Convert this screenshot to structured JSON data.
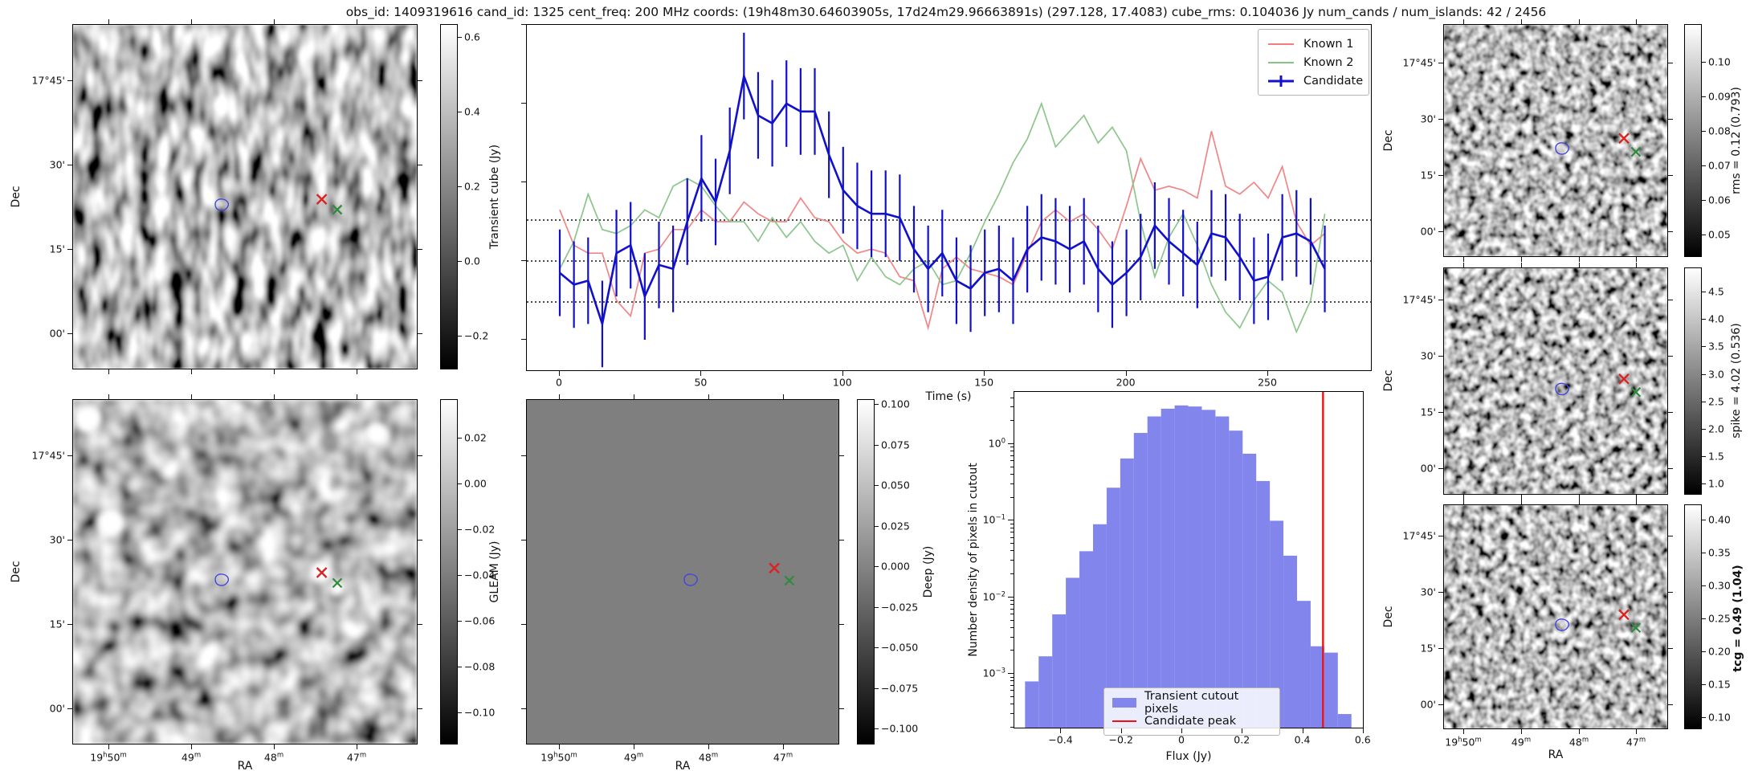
{
  "title": "obs_id: 1409319616 cand_id: 1325 cent_freq: 200 MHz coords: (19h48m30.64603905s, 17d24m29.96663891s) (297.128, 17.4083) cube_rms: 0.104036 Jy num_cands / num_islands: 42 / 2456",
  "stats": {
    "obs_id": "1409319616",
    "cand_id": "1325",
    "cent_freq": "200 MHz",
    "coords": "(19h48m30.64603905s, 17d24m29.96663891s)",
    "coords_deg": "(297.128, 17.4083)",
    "cube_rms": "0.104036 Jy",
    "num_cands": "42",
    "num_islands": "2456"
  },
  "colors": {
    "candidate": "#1111cc",
    "known1": "#f08080",
    "known2": "#86c386",
    "hist_fill": "#8285ec",
    "peak_line": "#ee1111",
    "contour": "#4444dd",
    "marker_red": "#dd2222",
    "marker_green": "#2e8b3c"
  },
  "axes": {
    "dec_label": "Dec",
    "ra_label": "RA",
    "sky_yticks": [
      "17°45'",
      "30'",
      "15'",
      "00'"
    ],
    "sky_xticks": [
      "19h50m",
      "49m",
      "48m",
      "47m"
    ]
  },
  "colorbars": {
    "transient": {
      "label": "Transient cube (Jy)",
      "ticks": [
        "0.6",
        "0.4",
        "0.2",
        "0.0",
        "−0.2"
      ]
    },
    "gleam": {
      "label": "GLEAM (Jy)",
      "ticks": [
        "0.02",
        "0.00",
        "−0.02",
        "−0.04",
        "−0.06",
        "−0.08",
        "−0.10"
      ]
    },
    "deep": {
      "label": "Deep (Jy)",
      "ticks": [
        "0.100",
        "0.075",
        "0.050",
        "0.025",
        "0.000",
        "−0.025",
        "−0.050",
        "−0.075",
        "−0.100"
      ]
    },
    "rms": {
      "label": "rms = 0.12 (0.793)",
      "ticks": [
        "0.10",
        "0.09",
        "0.08",
        "0.07",
        "0.06",
        "0.05"
      ]
    },
    "spike": {
      "label": "spike = 4.02 (0.536)",
      "ticks": [
        "4.5",
        "4.0",
        "3.5",
        "3.0",
        "2.5",
        "2.0",
        "1.5",
        "1.0"
      ]
    },
    "tcg": {
      "label": "tcg = 0.49 (1.04)",
      "ticks": [
        "0.40",
        "0.35",
        "0.30",
        "0.25",
        "0.20",
        "0.15",
        "0.10"
      ]
    }
  },
  "chart_data": [
    {
      "type": "line",
      "title": "",
      "xlabel": "Time (s)",
      "ylabel": "",
      "x": [
        0,
        5,
        10,
        15,
        20,
        25,
        30,
        35,
        40,
        45,
        50,
        55,
        60,
        65,
        70,
        75,
        80,
        85,
        90,
        95,
        100,
        105,
        110,
        115,
        120,
        125,
        130,
        135,
        140,
        145,
        150,
        155,
        160,
        165,
        170,
        175,
        180,
        185,
        190,
        195,
        200,
        205,
        210,
        215,
        220,
        225,
        230,
        235,
        240,
        245,
        250,
        255,
        260,
        265,
        270
      ],
      "series": [
        {
          "name": "Known 1",
          "color": "#f08080",
          "values": [
            0.13,
            0.04,
            0.02,
            0.02,
            -0.1,
            -0.14,
            0.02,
            0.03,
            0.08,
            0.08,
            0.13,
            0.1,
            0.1,
            0.15,
            0.12,
            0.1,
            0.1,
            0.16,
            0.11,
            0.1,
            0.05,
            0.02,
            0.03,
            0.02,
            -0.04,
            -0.05,
            -0.17,
            -0.02,
            0.01,
            -0.02,
            -0.03,
            -0.04,
            -0.06,
            0.02,
            0.1,
            0.13,
            0.1,
            0.12,
            0.08,
            0.03,
            0.14,
            0.26,
            0.18,
            0.19,
            0.18,
            0.16,
            0.33,
            0.19,
            0.17,
            0.2,
            0.16,
            0.24,
            0.1,
            0.04,
            0.07
          ]
        },
        {
          "name": "Known 2",
          "color": "#86c386",
          "values": [
            -0.02,
            0.05,
            0.17,
            0.08,
            0.07,
            0.09,
            0.13,
            0.11,
            0.19,
            0.21,
            0.19,
            0.14,
            0.1,
            0.1,
            0.05,
            0.11,
            0.06,
            0.1,
            0.05,
            0.02,
            0.04,
            -0.05,
            0.01,
            -0.04,
            -0.06,
            -0.02,
            0.0,
            -0.06,
            -0.05,
            0.02,
            0.1,
            0.17,
            0.25,
            0.31,
            0.4,
            0.29,
            0.33,
            0.37,
            0.3,
            0.34,
            0.28,
            0.1,
            -0.04,
            0.06,
            0.12,
            0.04,
            -0.06,
            -0.13,
            -0.17,
            -0.1,
            -0.05,
            -0.08,
            -0.18,
            -0.1,
            0.12
          ]
        },
        {
          "name": "Candidate",
          "color": "#1111cc",
          "yerr": 0.11,
          "values": [
            -0.03,
            -0.06,
            -0.05,
            -0.16,
            0.02,
            0.04,
            -0.09,
            -0.01,
            -0.02,
            0.1,
            0.21,
            0.15,
            0.28,
            0.47,
            0.37,
            0.35,
            0.4,
            0.38,
            0.38,
            0.27,
            0.18,
            0.14,
            0.12,
            0.12,
            0.11,
            0.03,
            -0.02,
            0.02,
            -0.05,
            -0.07,
            -0.03,
            -0.02,
            -0.05,
            0.03,
            0.06,
            0.05,
            0.03,
            0.05,
            -0.02,
            -0.06,
            -0.03,
            0.01,
            0.09,
            0.05,
            0.02,
            -0.01,
            0.07,
            0.06,
            0.01,
            -0.05,
            -0.04,
            0.06,
            0.07,
            0.05,
            -0.02
          ]
        }
      ],
      "hlines": [
        0.104,
        0,
        -0.104
      ],
      "xticks": [
        0,
        50,
        100,
        150,
        200,
        250
      ],
      "xlim": [
        -11.6,
        287
      ],
      "ylim": [
        -0.281,
        0.6
      ],
      "legend_position": "upper right",
      "legend": [
        "Known 1",
        "Known 2",
        "Candidate"
      ]
    },
    {
      "type": "bar",
      "title": "",
      "xlabel": "Flux (Jy)",
      "ylabel": "Number density of pixels in cutout",
      "yscale": "log",
      "bin_start": -0.52,
      "bin_width": 0.045,
      "values": [
        0.0008,
        0.0017,
        0.006,
        0.018,
        0.04,
        0.09,
        0.27,
        0.65,
        1.4,
        2.3,
        2.9,
        3.2,
        3.1,
        2.8,
        2.3,
        1.5,
        0.75,
        0.33,
        0.1,
        0.035,
        0.009,
        0.0023,
        0.0019,
        0.0003
      ],
      "xticks": [
        -0.4,
        -0.2,
        0.0,
        0.2,
        0.4,
        0.6
      ],
      "yticks": [
        "10^0",
        "10^−1",
        "10^−2",
        "10^−3"
      ],
      "xlim": [
        -0.565,
        0.605
      ],
      "candidate_peak_x": 0.466,
      "legend": [
        "Transient cutout pixels",
        "Candidate peak"
      ],
      "legend_position": "lower center"
    }
  ]
}
